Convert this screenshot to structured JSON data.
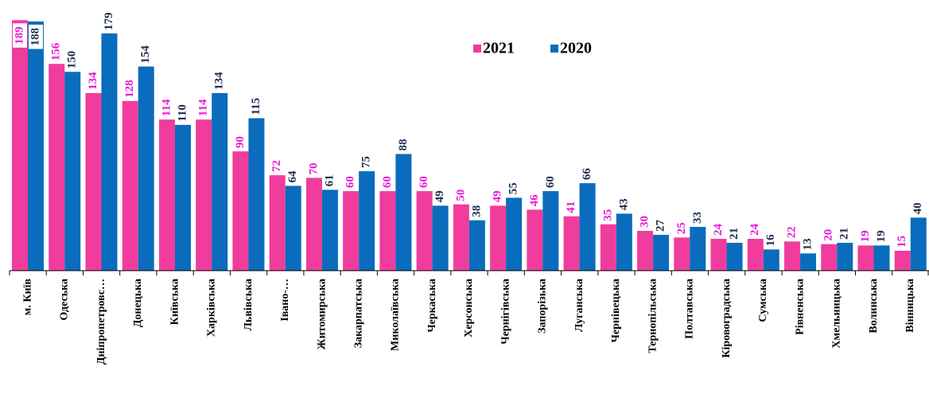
{
  "chart_data": {
    "type": "bar",
    "categories": [
      "м. Київ",
      "Одеська",
      "Дніпропетровс…",
      "Донецька",
      "Київська",
      "Харківська",
      "Львівська",
      "Івано-…",
      "Житомирська",
      "Закарпатська",
      "Миколаївська",
      "Черкаська",
      "Херсонська",
      "Чернігівська",
      "Запорізька",
      "Луганська",
      "Чернівецька",
      "Тернопільська",
      "Полтавська",
      "Кіровоградська",
      "Сумська",
      "Рівненська",
      "Хмельницька",
      "Волинська",
      "Вінницька"
    ],
    "series": [
      {
        "name": "2021",
        "color": "#f03c9c",
        "label_color": "#e81ad8",
        "values": [
          189,
          156,
          134,
          128,
          114,
          114,
          90,
          72,
          70,
          60,
          60,
          60,
          50,
          49,
          46,
          41,
          35,
          30,
          25,
          24,
          24,
          22,
          20,
          19,
          15
        ]
      },
      {
        "name": "2020",
        "color": "#0a6cbc",
        "label_color": "#1f2d4e",
        "values": [
          188,
          150,
          179,
          154,
          110,
          134,
          115,
          64,
          61,
          75,
          88,
          49,
          38,
          55,
          60,
          66,
          43,
          27,
          33,
          21,
          16,
          13,
          21,
          19,
          40
        ]
      }
    ],
    "ylim": [
      0,
      200
    ],
    "legend": "top-center"
  }
}
